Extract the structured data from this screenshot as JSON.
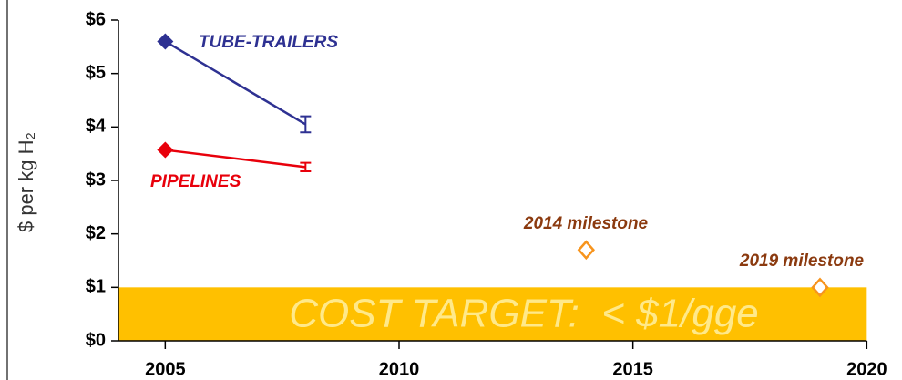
{
  "chart_data": {
    "type": "line",
    "y_label": "$ per kg H₂",
    "xlim": [
      2004,
      2020
    ],
    "ylim": [
      0,
      6
    ],
    "xticks": [
      2005,
      2010,
      2015,
      2020
    ],
    "yticks": [
      {
        "value": 0,
        "label": "$0"
      },
      {
        "value": 1,
        "label": "$1"
      },
      {
        "value": 2,
        "label": "$2"
      },
      {
        "value": 3,
        "label": "$3"
      },
      {
        "value": 4,
        "label": "$4"
      },
      {
        "value": 5,
        "label": "$5"
      },
      {
        "value": 6,
        "label": "$6"
      }
    ],
    "series": [
      {
        "name": "TUBE-TRAILERS",
        "color": "#2e3192",
        "x": [
          2005,
          2008
        ],
        "values": [
          5.6,
          4.05
        ],
        "errors": [
          null,
          0.15
        ]
      },
      {
        "name": "PIPELINES",
        "color": "#e8000b",
        "x": [
          2005,
          2008
        ],
        "values": [
          3.57,
          3.25
        ],
        "errors": [
          null,
          0.08
        ]
      }
    ],
    "milestones": [
      {
        "label": "2014 milestone",
        "x": 2014,
        "value": 1.7
      },
      {
        "label": "2019 milestone",
        "x": 2019,
        "value": 1.0
      }
    ],
    "milestone_color": "#f7941d",
    "milestone_label_color": "#8b3a0f",
    "target": {
      "label": "COST TARGET:  < $1/gge",
      "value": 1,
      "color": "#ffc000",
      "text_color": "#ffe98a"
    }
  }
}
